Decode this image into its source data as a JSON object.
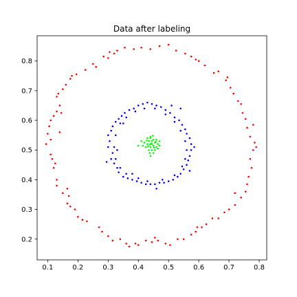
{
  "chart_data": {
    "type": "scatter",
    "title": "Data after labeling",
    "xlabel": "",
    "ylabel": "",
    "xlim": [
      0.065,
      0.825
    ],
    "ylim": [
      0.13,
      0.885
    ],
    "xticks": [
      "0.1",
      "0.2",
      "0.3",
      "0.4",
      "0.5",
      "0.6",
      "0.7",
      "0.8"
    ],
    "yticks": [
      "0.2",
      "0.3",
      "0.4",
      "0.5",
      "0.6",
      "0.7",
      "0.8"
    ],
    "grid": false,
    "legend": "none",
    "series": [
      {
        "color": "#ff0000",
        "points": [
          [
            0.305,
            0.83
          ],
          [
            0.285,
            0.815
          ],
          [
            0.25,
            0.79
          ],
          [
            0.225,
            0.77
          ],
          [
            0.195,
            0.755
          ],
          [
            0.18,
            0.75
          ],
          [
            0.16,
            0.72
          ],
          [
            0.15,
            0.705
          ],
          [
            0.135,
            0.69
          ],
          [
            0.13,
            0.68
          ],
          [
            0.14,
            0.65
          ],
          [
            0.13,
            0.63
          ],
          [
            0.12,
            0.615
          ],
          [
            0.11,
            0.6
          ],
          [
            0.105,
            0.58
          ],
          [
            0.1,
            0.555
          ],
          [
            0.095,
            0.52
          ],
          [
            0.11,
            0.485
          ],
          [
            0.115,
            0.47
          ],
          [
            0.125,
            0.455
          ],
          [
            0.13,
            0.4
          ],
          [
            0.13,
            0.38
          ],
          [
            0.15,
            0.355
          ],
          [
            0.165,
            0.37
          ],
          [
            0.165,
            0.32
          ],
          [
            0.175,
            0.31
          ],
          [
            0.19,
            0.3
          ],
          [
            0.2,
            0.275
          ],
          [
            0.215,
            0.265
          ],
          [
            0.23,
            0.26
          ],
          [
            0.27,
            0.24
          ],
          [
            0.28,
            0.225
          ],
          [
            0.3,
            0.21
          ],
          [
            0.34,
            0.2
          ],
          [
            0.36,
            0.185
          ],
          [
            0.37,
            0.175
          ],
          [
            0.39,
            0.185
          ],
          [
            0.4,
            0.18
          ],
          [
            0.425,
            0.195
          ],
          [
            0.445,
            0.19
          ],
          [
            0.465,
            0.195
          ],
          [
            0.49,
            0.185
          ],
          [
            0.505,
            0.18
          ],
          [
            0.53,
            0.2
          ],
          [
            0.55,
            0.2
          ],
          [
            0.575,
            0.215
          ],
          [
            0.59,
            0.225
          ],
          [
            0.61,
            0.24
          ],
          [
            0.625,
            0.25
          ],
          [
            0.645,
            0.27
          ],
          [
            0.665,
            0.27
          ],
          [
            0.685,
            0.29
          ],
          [
            0.7,
            0.3
          ],
          [
            0.72,
            0.315
          ],
          [
            0.74,
            0.34
          ],
          [
            0.755,
            0.36
          ],
          [
            0.76,
            0.385
          ],
          [
            0.765,
            0.41
          ],
          [
            0.775,
            0.44
          ],
          [
            0.77,
            0.47
          ],
          [
            0.78,
            0.5
          ],
          [
            0.79,
            0.51
          ],
          [
            0.785,
            0.525
          ],
          [
            0.77,
            0.545
          ],
          [
            0.76,
            0.575
          ],
          [
            0.755,
            0.605
          ],
          [
            0.745,
            0.625
          ],
          [
            0.74,
            0.655
          ],
          [
            0.73,
            0.665
          ],
          [
            0.715,
            0.69
          ],
          [
            0.705,
            0.71
          ],
          [
            0.695,
            0.745
          ],
          [
            0.665,
            0.765
          ],
          [
            0.65,
            0.76
          ],
          [
            0.62,
            0.785
          ],
          [
            0.6,
            0.8
          ],
          [
            0.575,
            0.815
          ],
          [
            0.555,
            0.825
          ],
          [
            0.525,
            0.835
          ],
          [
            0.5,
            0.855
          ],
          [
            0.47,
            0.85
          ],
          [
            0.44,
            0.84
          ],
          [
            0.41,
            0.845
          ],
          [
            0.385,
            0.84
          ],
          [
            0.355,
            0.845
          ],
          [
            0.33,
            0.835
          ],
          [
            0.32,
            0.825
          ],
          [
            0.3,
            0.81
          ],
          [
            0.175,
            0.74
          ],
          [
            0.145,
            0.625
          ],
          [
            0.14,
            0.56
          ],
          [
            0.12,
            0.44
          ],
          [
            0.17,
            0.345
          ],
          [
            0.315,
            0.195
          ],
          [
            0.455,
            0.205
          ],
          [
            0.595,
            0.24
          ],
          [
            0.72,
            0.355
          ],
          [
            0.78,
            0.585
          ],
          [
            0.69,
            0.735
          ],
          [
            0.59,
            0.805
          ],
          [
            0.26,
            0.78
          ],
          [
            0.11,
            0.535
          ]
        ]
      },
      {
        "color": "#0000ff",
        "points": [
          [
            0.31,
            0.565
          ],
          [
            0.3,
            0.55
          ],
          [
            0.305,
            0.53
          ],
          [
            0.3,
            0.51
          ],
          [
            0.315,
            0.49
          ],
          [
            0.31,
            0.47
          ],
          [
            0.32,
            0.455
          ],
          [
            0.33,
            0.44
          ],
          [
            0.335,
            0.425
          ],
          [
            0.35,
            0.41
          ],
          [
            0.365,
            0.405
          ],
          [
            0.38,
            0.4
          ],
          [
            0.395,
            0.395
          ],
          [
            0.41,
            0.39
          ],
          [
            0.425,
            0.385
          ],
          [
            0.44,
            0.385
          ],
          [
            0.455,
            0.385
          ],
          [
            0.47,
            0.39
          ],
          [
            0.485,
            0.39
          ],
          [
            0.5,
            0.395
          ],
          [
            0.515,
            0.4
          ],
          [
            0.53,
            0.41
          ],
          [
            0.54,
            0.42
          ],
          [
            0.55,
            0.435
          ],
          [
            0.56,
            0.45
          ],
          [
            0.565,
            0.465
          ],
          [
            0.57,
            0.48
          ],
          [
            0.575,
            0.5
          ],
          [
            0.575,
            0.52
          ],
          [
            0.57,
            0.54
          ],
          [
            0.56,
            0.555
          ],
          [
            0.555,
            0.57
          ],
          [
            0.545,
            0.585
          ],
          [
            0.535,
            0.6
          ],
          [
            0.52,
            0.61
          ],
          [
            0.505,
            0.625
          ],
          [
            0.49,
            0.635
          ],
          [
            0.475,
            0.645
          ],
          [
            0.46,
            0.65
          ],
          [
            0.445,
            0.655
          ],
          [
            0.43,
            0.66
          ],
          [
            0.415,
            0.655
          ],
          [
            0.4,
            0.65
          ],
          [
            0.385,
            0.64
          ],
          [
            0.37,
            0.635
          ],
          [
            0.355,
            0.625
          ],
          [
            0.345,
            0.615
          ],
          [
            0.335,
            0.605
          ],
          [
            0.325,
            0.595
          ],
          [
            0.315,
            0.58
          ],
          [
            0.325,
            0.47
          ],
          [
            0.34,
            0.44
          ],
          [
            0.36,
            0.42
          ],
          [
            0.4,
            0.405
          ],
          [
            0.43,
            0.395
          ],
          [
            0.48,
            0.4
          ],
          [
            0.52,
            0.415
          ],
          [
            0.545,
            0.445
          ],
          [
            0.555,
            0.47
          ],
          [
            0.56,
            0.5
          ],
          [
            0.555,
            0.53
          ],
          [
            0.54,
            0.565
          ],
          [
            0.52,
            0.595
          ],
          [
            0.49,
            0.62
          ],
          [
            0.455,
            0.64
          ],
          [
            0.42,
            0.64
          ],
          [
            0.39,
            0.63
          ],
          [
            0.36,
            0.61
          ],
          [
            0.34,
            0.59
          ],
          [
            0.325,
            0.55
          ],
          [
            0.32,
            0.51
          ],
          [
            0.295,
            0.46
          ],
          [
            0.585,
            0.51
          ],
          [
            0.54,
            0.64
          ],
          [
            0.35,
            0.59
          ],
          [
            0.38,
            0.42
          ],
          [
            0.46,
            0.37
          ],
          [
            0.51,
            0.65
          ],
          [
            0.33,
            0.5
          ],
          [
            0.57,
            0.43
          ]
        ]
      },
      {
        "color": "#00ff00",
        "points": [
          [
            0.445,
            0.52
          ],
          [
            0.44,
            0.51
          ],
          [
            0.45,
            0.515
          ],
          [
            0.455,
            0.525
          ],
          [
            0.435,
            0.53
          ],
          [
            0.43,
            0.52
          ],
          [
            0.44,
            0.54
          ],
          [
            0.45,
            0.535
          ],
          [
            0.46,
            0.51
          ],
          [
            0.425,
            0.51
          ],
          [
            0.445,
            0.5
          ],
          [
            0.455,
            0.5
          ],
          [
            0.435,
            0.5
          ],
          [
            0.465,
            0.52
          ],
          [
            0.42,
            0.525
          ],
          [
            0.44,
            0.545
          ],
          [
            0.448,
            0.548
          ],
          [
            0.438,
            0.49
          ],
          [
            0.45,
            0.49
          ],
          [
            0.47,
            0.515
          ],
          [
            0.415,
            0.515
          ],
          [
            0.43,
            0.54
          ],
          [
            0.46,
            0.535
          ],
          [
            0.445,
            0.53
          ],
          [
            0.432,
            0.512
          ],
          [
            0.452,
            0.508
          ],
          [
            0.442,
            0.522
          ],
          [
            0.458,
            0.528
          ],
          [
            0.428,
            0.532
          ],
          [
            0.438,
            0.518
          ],
          [
            0.4,
            0.515
          ],
          [
            0.465,
            0.505
          ],
          [
            0.41,
            0.53
          ],
          [
            0.44,
            0.48
          ],
          [
            0.47,
            0.53
          ]
        ]
      }
    ]
  }
}
